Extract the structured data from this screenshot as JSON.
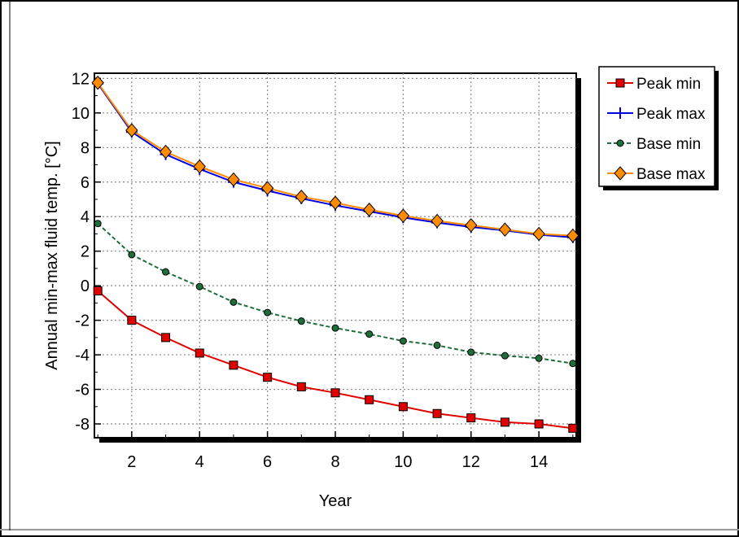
{
  "chart_data": {
    "type": "line",
    "title": "",
    "xlabel": "Year",
    "ylabel": "Annual min-max fluid temp. [°C]",
    "xlim": [
      0.9,
      15.1
    ],
    "ylim": [
      -8.8,
      12.3
    ],
    "xticks": [
      2,
      4,
      6,
      8,
      10,
      12,
      14
    ],
    "yticks": [
      -8,
      -6,
      -4,
      -2,
      0,
      2,
      4,
      6,
      8,
      10,
      12
    ],
    "grid": true,
    "legend_position": "outside-right-top",
    "x": [
      1,
      2,
      3,
      4,
      5,
      6,
      7,
      8,
      9,
      10,
      11,
      12,
      13,
      14,
      15
    ],
    "series": [
      {
        "name": "Peak min",
        "color": "#e00000",
        "marker": "square",
        "line": "solid",
        "values": [
          -0.3,
          -2.0,
          -3.0,
          -3.9,
          -4.6,
          -5.3,
          -5.85,
          -6.2,
          -6.6,
          -7.0,
          -7.4,
          -7.65,
          -7.9,
          -8.0,
          -8.25
        ]
      },
      {
        "name": "Peak max",
        "color": "#0000e0",
        "marker": "plus",
        "line": "solid",
        "values": [
          11.7,
          8.9,
          7.6,
          6.75,
          6.0,
          5.5,
          5.05,
          4.65,
          4.3,
          3.95,
          3.65,
          3.4,
          3.2,
          2.95,
          2.8
        ]
      },
      {
        "name": "Base min",
        "color": "#1e6e3c",
        "marker": "circle",
        "line": "dashed",
        "values": [
          3.6,
          1.8,
          0.8,
          -0.05,
          -0.95,
          -1.55,
          -2.05,
          -2.45,
          -2.8,
          -3.2,
          -3.45,
          -3.85,
          -4.05,
          -4.2,
          -4.5
        ]
      },
      {
        "name": "Base max",
        "color": "#ff8c00",
        "marker": "diamond",
        "line": "solid",
        "values": [
          11.75,
          9.0,
          7.75,
          6.9,
          6.15,
          5.65,
          5.15,
          4.8,
          4.4,
          4.05,
          3.75,
          3.5,
          3.25,
          3.0,
          2.9
        ]
      }
    ]
  }
}
